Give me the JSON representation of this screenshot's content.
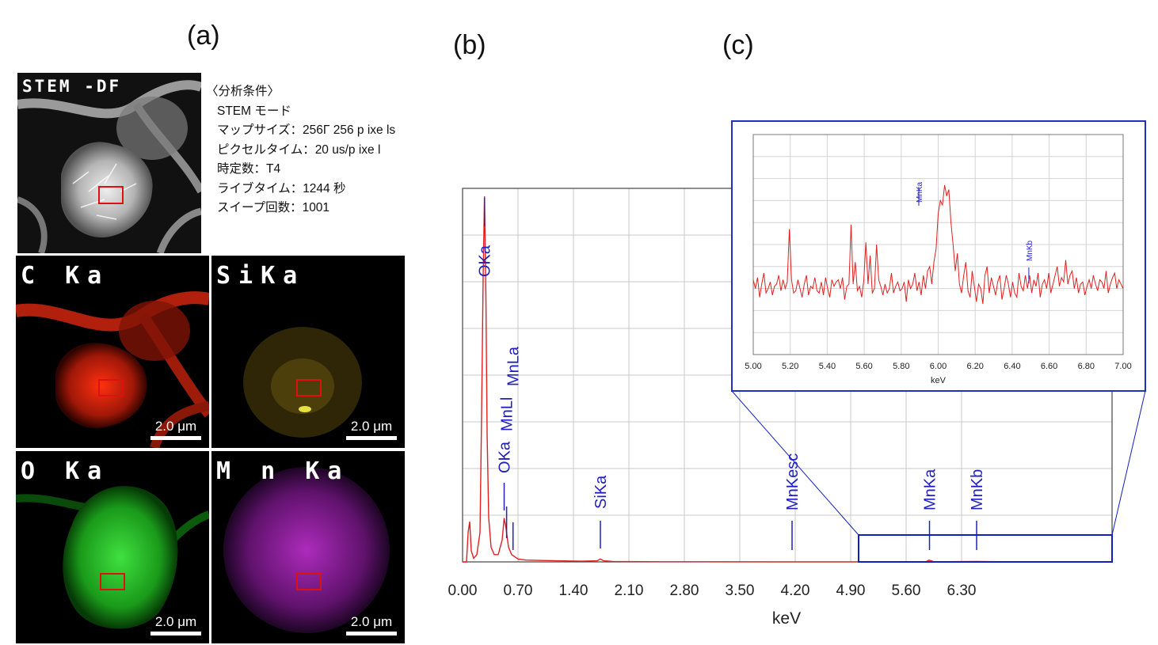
{
  "panels": {
    "a": "(a)",
    "b": "(b)",
    "c": "(c)"
  },
  "stem_label": "STEM -DF",
  "tiles": [
    {
      "label": "C Ka",
      "scale": "2.0 μm",
      "color": "#e02010"
    },
    {
      "label": "SiKa",
      "scale": "2.0 μm",
      "color": "#c8a818"
    },
    {
      "label": "O Ka",
      "scale": "2.0 μm",
      "color": "#20c020"
    },
    {
      "label": "M n Ka",
      "scale": "2.0 μm",
      "color": "#b020c0"
    }
  ],
  "conditions": {
    "title": "〈分析条件〉",
    "lines": [
      "STEM モード",
      "マップサイズ：256Γ 256 p ixe ls",
      "ピクセルタイム：20 us/p ixe l",
      "時定数：T4",
      "ライブタイム：1244 秒",
      "スイープ回数：1001"
    ]
  },
  "chart_data": [
    {
      "type": "line",
      "id": "b",
      "xlabel": "keV",
      "xlim": [
        0.0,
        8.2
      ],
      "ylim": [
        0,
        100
      ],
      "x_ticks": [
        "0.00",
        "0.70",
        "1.40",
        "2.10",
        "2.80",
        "3.50",
        "4.20",
        "4.90",
        "5.60",
        "6.30"
      ],
      "series": [
        {
          "color": "#e02020",
          "points": [
            [
              0.0,
              0
            ],
            [
              0.05,
              0
            ],
            [
              0.07,
              8
            ],
            [
              0.09,
              11
            ],
            [
              0.11,
              3
            ],
            [
              0.14,
              1
            ],
            [
              0.18,
              2
            ],
            [
              0.22,
              8
            ],
            [
              0.24,
              40
            ],
            [
              0.26,
              78
            ],
            [
              0.277,
              100
            ],
            [
              0.295,
              72
            ],
            [
              0.31,
              35
            ],
            [
              0.33,
              12
            ],
            [
              0.36,
              4
            ],
            [
              0.4,
              2
            ],
            [
              0.45,
              2
            ],
            [
              0.5,
              6
            ],
            [
              0.525,
              12
            ],
            [
              0.55,
              9
            ],
            [
              0.58,
              4
            ],
            [
              0.62,
              2
            ],
            [
              0.7,
              0.8
            ],
            [
              0.8,
              0.5
            ],
            [
              1.0,
              0.4
            ],
            [
              1.2,
              0.3
            ],
            [
              1.5,
              0.2
            ],
            [
              1.7,
              0.3
            ],
            [
              1.74,
              0.8
            ],
            [
              1.78,
              0.3
            ],
            [
              1.9,
              0.1
            ],
            [
              2.5,
              0.05
            ],
            [
              4.0,
              0.02
            ],
            [
              5.0,
              0.02
            ],
            [
              5.85,
              0.02
            ],
            [
              5.89,
              0.5
            ],
            [
              5.95,
              0.05
            ],
            [
              6.49,
              0.1
            ],
            [
              7.0,
              0.02
            ],
            [
              8.2,
              0.02
            ]
          ]
        }
      ],
      "peaks": [
        {
          "label": "OKa",
          "x": 0.277
        },
        {
          "label": "OKa",
          "x": 0.525
        },
        {
          "label": "MnLl",
          "x": 0.556
        },
        {
          "label": "MnLa",
          "x": 0.637
        },
        {
          "label": "SiKa",
          "x": 1.74
        },
        {
          "label": "MnKesc",
          "x": 4.16
        },
        {
          "label": "MnKa",
          "x": 5.895
        },
        {
          "label": "MnKb",
          "x": 6.49
        }
      ]
    },
    {
      "type": "line",
      "id": "c",
      "xlabel": "keV",
      "xlim": [
        5.0,
        7.0
      ],
      "ylim": [
        0,
        10
      ],
      "x_ticks": [
        "5.00",
        "5.20",
        "5.40",
        "5.60",
        "5.80",
        "6.00",
        "6.20",
        "6.40",
        "6.60",
        "6.80",
        "7.00"
      ],
      "series": [
        {
          "color": "#e02020",
          "values": [
            3.4,
            3.0,
            3.5,
            2.6,
            3.2,
            3.7,
            2.8,
            3.0,
            3.3,
            2.7,
            3.1,
            3.2,
            3.6,
            2.9,
            3.4,
            3.0,
            3.3,
            5.7,
            3.4,
            2.8,
            2.9,
            3.4,
            3.0,
            2.6,
            3.2,
            3.6,
            2.7,
            3.1,
            3.0,
            3.5,
            2.9,
            2.8,
            3.3,
            2.7,
            3.5,
            3.0,
            2.6,
            3.4,
            3.1,
            3.3,
            3.4,
            3.0,
            3.5,
            2.5,
            3.1,
            3.2,
            5.9,
            3.2,
            4.2,
            2.9,
            3.1,
            2.6,
            3.4,
            5.1,
            3.2,
            4.5,
            2.8,
            3.0,
            5.0,
            3.4,
            3.1,
            2.7,
            3.2,
            2.8,
            3.0,
            3.7,
            2.8,
            3.1,
            3.3,
            2.9,
            3.0,
            3.3,
            2.4,
            3.4,
            3.0,
            3.2,
            3.7,
            2.9,
            3.3,
            2.7,
            3.6,
            3.0,
            3.8,
            4.0,
            3.2,
            4.2,
            4.8,
            6.4,
            7.0,
            6.8,
            7.7,
            7.2,
            7.5,
            6.0,
            5.0,
            3.8,
            4.6,
            3.2,
            2.8,
            3.6,
            4.2,
            2.9,
            2.6,
            3.8,
            3.1,
            2.4,
            3.2,
            3.0,
            2.3,
            3.6,
            4.0,
            2.8,
            3.5,
            3.1,
            2.7,
            3.3,
            3.6,
            2.5,
            3.0,
            3.6,
            3.2,
            2.6,
            3.3,
            2.8,
            2.6,
            3.7,
            3.1,
            2.9,
            3.6,
            3.0,
            3.6,
            2.8,
            3.4,
            3.1,
            3.7,
            2.6,
            3.2,
            3.4,
            3.0,
            3.7,
            2.8,
            3.2,
            3.6,
            4.0,
            3.1,
            3.5,
            3.3,
            4.3,
            3.2,
            3.6,
            3.8,
            3.0,
            3.5,
            2.8,
            3.2,
            3.3,
            2.7,
            3.1,
            3.4,
            3.0,
            3.6,
            3.2,
            2.9,
            3.4,
            3.3,
            3.0,
            3.8,
            2.8,
            3.2,
            3.5,
            3.7,
            3.0,
            3.4,
            3.2,
            3.0
          ]
        }
      ],
      "peaks": [
        {
          "label": "MnKa",
          "x": 5.895
        },
        {
          "label": "MnKb",
          "x": 6.49
        }
      ]
    }
  ]
}
